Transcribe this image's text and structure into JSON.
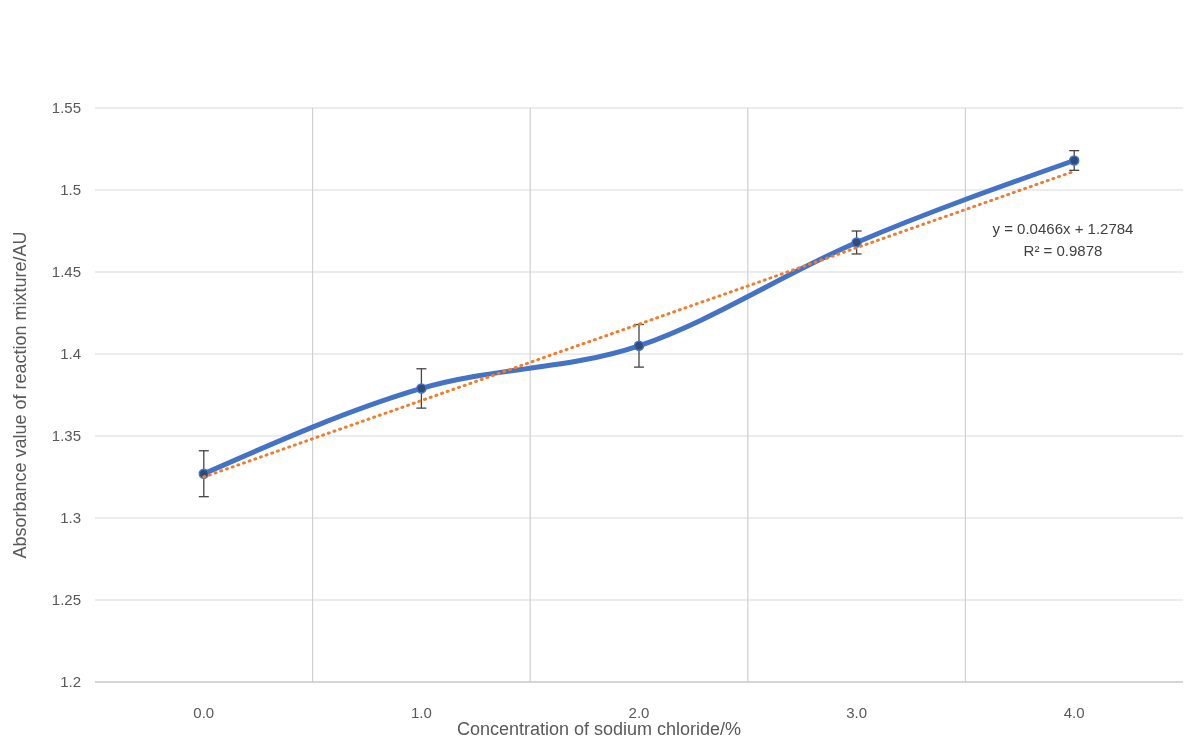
{
  "chart_data": {
    "type": "line",
    "xlabel": "Concentration of sodium chloride/%",
    "ylabel": "Absorbance value of reaction mixture/AU",
    "categories": [
      "0.0",
      "1.0",
      "2.0",
      "3.0",
      "4.0"
    ],
    "ylim": [
      1.2,
      1.55
    ],
    "yticks": [
      1.2,
      1.25,
      1.3,
      1.35,
      1.4,
      1.45,
      1.5,
      1.55
    ],
    "grid": true,
    "series": [
      {
        "color": "#4472c4",
        "values": [
          1.327,
          1.379,
          1.405,
          1.468,
          1.518
        ],
        "errors": [
          0.014,
          0.012,
          0.013,
          0.007,
          0.006
        ],
        "marker": "circle",
        "line_style": "solid"
      },
      {
        "color": "#ed7d31",
        "values": [
          1.325,
          1.3716,
          1.4182,
          1.4648,
          1.5114
        ],
        "marker": "none",
        "line_style": "dotted"
      }
    ],
    "annotations": [
      "y = 0.0466x + 1.2784",
      "R² = 0.9878"
    ]
  }
}
